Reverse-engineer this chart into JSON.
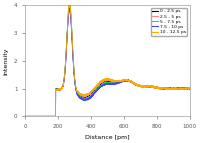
{
  "title": "",
  "xlabel": "Distance [pm]",
  "ylabel": "Intensity",
  "xlim": [
    0,
    1000
  ],
  "ylim": [
    0,
    4
  ],
  "yticks": [
    0,
    1,
    2,
    3,
    4
  ],
  "xticks": [
    0,
    200,
    400,
    600,
    800,
    1000
  ],
  "legend_labels": [
    "0 - 2.5 ps",
    "2.5 - 5 ps",
    "5 - 7.5 ps",
    "7.5 - 10 ps",
    "10 - 12.5 ps"
  ],
  "line_colors": [
    "black",
    "#ff8888",
    "#44cc44",
    "#4444ff",
    "#ffaa00"
  ],
  "background": "white"
}
